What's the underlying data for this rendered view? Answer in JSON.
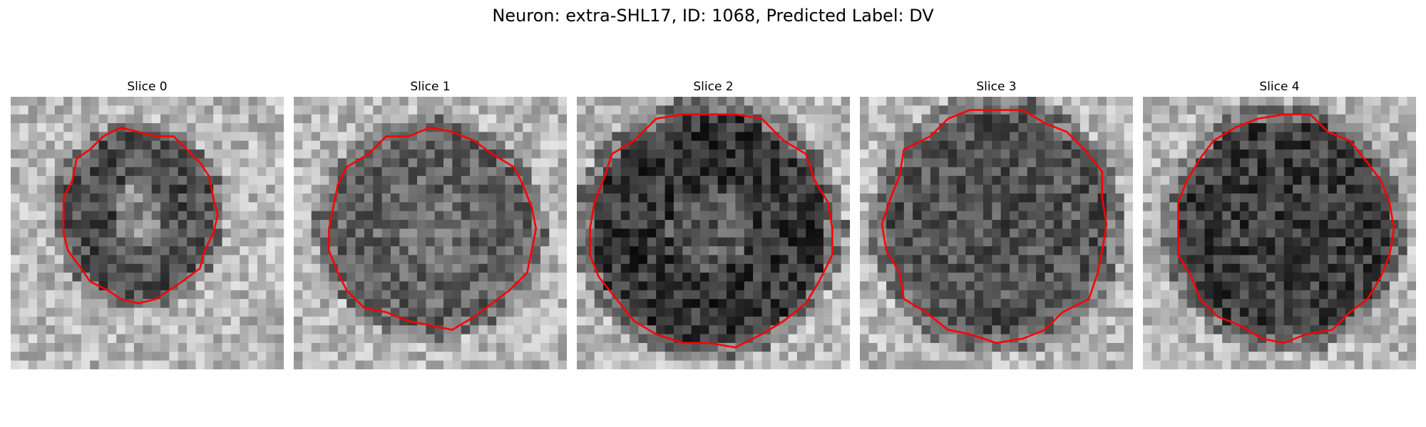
{
  "figure": {
    "title": "Neuron: extra-SHL17, ID: 1068, Predicted Label: DV"
  },
  "panels": [
    {
      "title": "Slice 0"
    },
    {
      "title": "Slice 1"
    },
    {
      "title": "Slice 2"
    },
    {
      "title": "Slice 3"
    },
    {
      "title": "Slice 4"
    }
  ],
  "image": {
    "colormap": "grayscale",
    "grid_size": 31,
    "contour_color": "#ff0000"
  }
}
